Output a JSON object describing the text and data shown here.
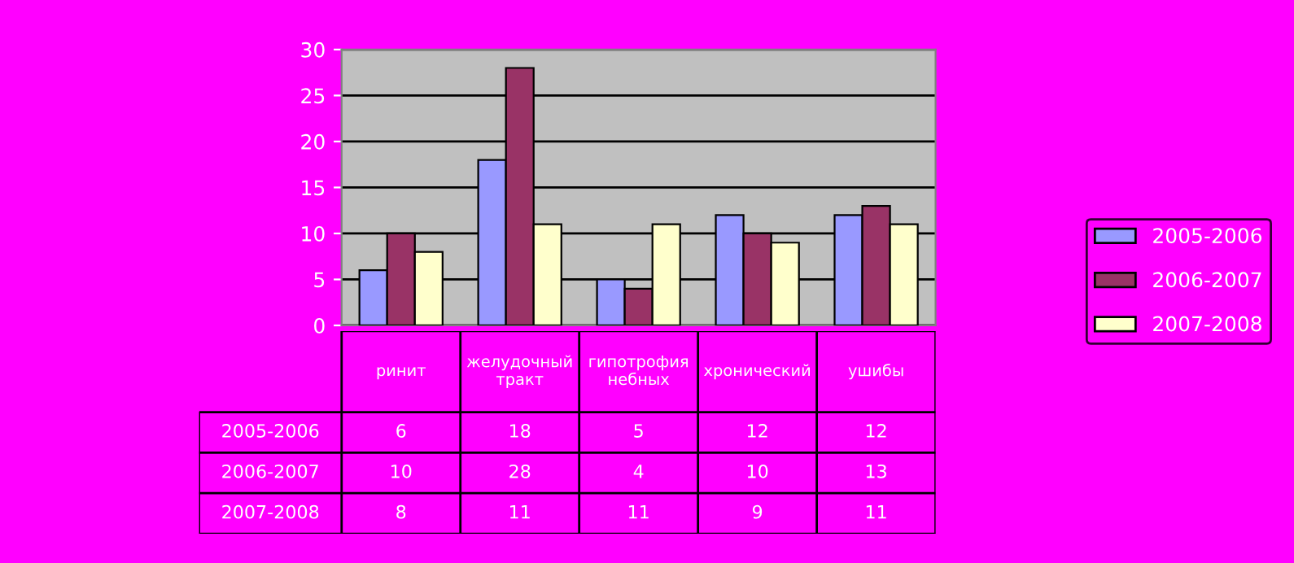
{
  "chart_data": {
    "type": "bar",
    "categories": [
      "ринит",
      "желудочный тракт",
      "гипотрофия небных",
      "хронический",
      "ушибы"
    ],
    "series": [
      {
        "name": "2005-2006",
        "color": "#9999ff",
        "values": [
          6,
          18,
          5,
          12,
          12
        ]
      },
      {
        "name": "2006-2007",
        "color": "#993366",
        "values": [
          10,
          28,
          4,
          10,
          13
        ]
      },
      {
        "name": "2007-2008",
        "color": "#ffffcc",
        "values": [
          8,
          11,
          11,
          9,
          11
        ]
      }
    ],
    "ylim": [
      0,
      30
    ],
    "yticks": [
      0,
      5,
      10,
      15,
      20,
      25,
      30
    ],
    "grid": "y",
    "legend": "right",
    "data_labels": true
  }
}
